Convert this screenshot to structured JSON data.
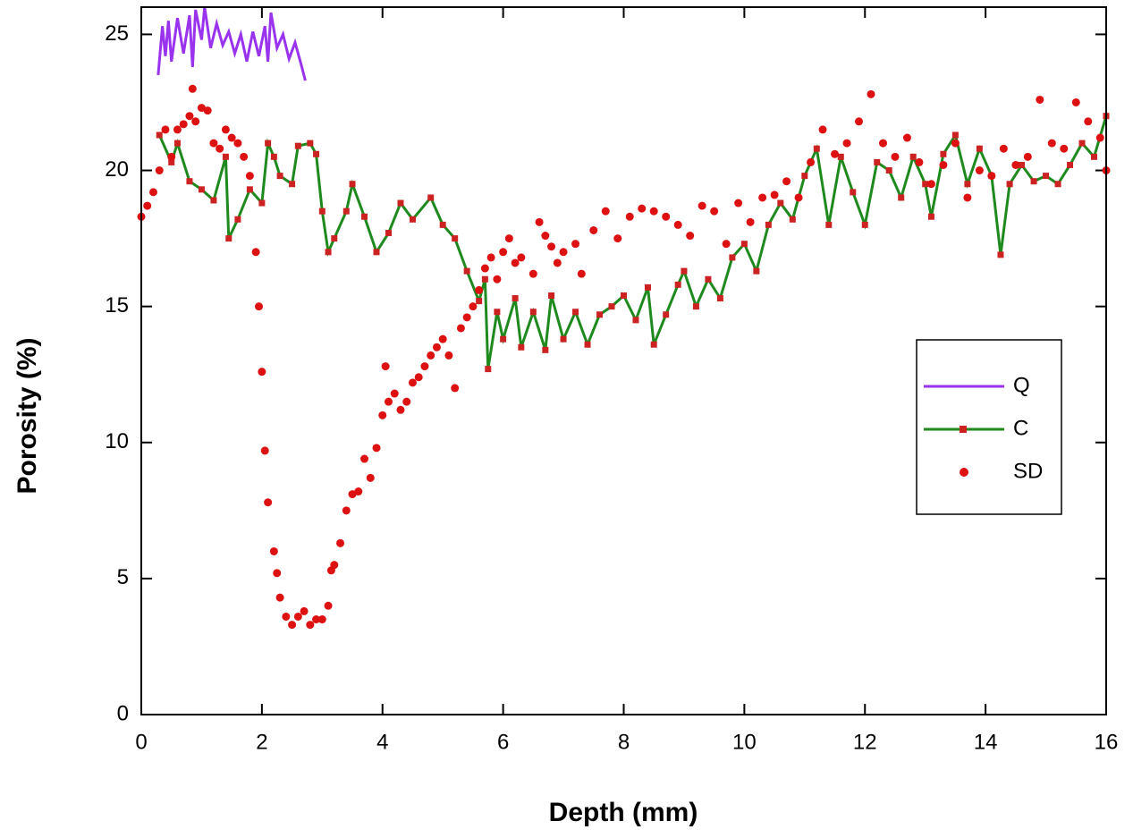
{
  "chart_data": {
    "type": "line",
    "xlabel": "Depth (mm)",
    "ylabel": "Porosity (%)",
    "xlim": [
      0,
      16
    ],
    "xticks": [
      0,
      2,
      4,
      6,
      8,
      10,
      12,
      14,
      16
    ],
    "ylim": [
      0,
      26
    ],
    "yticks": [
      0,
      5,
      10,
      15,
      20,
      25
    ],
    "legend": "right",
    "series": [
      {
        "name": "Q",
        "style": "line",
        "color": "#9933ee",
        "x": [
          0.28,
          0.35,
          0.4,
          0.45,
          0.5,
          0.6,
          0.7,
          0.8,
          0.85,
          0.9,
          1.0,
          1.05,
          1.15,
          1.25,
          1.35,
          1.45,
          1.55,
          1.65,
          1.75,
          1.85,
          1.95,
          2.05,
          2.1,
          2.15,
          2.25,
          2.35,
          2.45,
          2.55,
          2.65,
          2.72
        ],
        "values": [
          23.5,
          25.3,
          24.2,
          25.5,
          24.0,
          25.6,
          24.3,
          25.7,
          23.8,
          25.9,
          24.8,
          26.0,
          24.5,
          25.4,
          24.6,
          25.1,
          24.3,
          25.0,
          24.0,
          25.1,
          24.2,
          25.3,
          24.0,
          25.8,
          24.5,
          25.0,
          24.1,
          24.7,
          23.9,
          23.3
        ]
      },
      {
        "name": "C",
        "style": "line-marker",
        "color": "#1e8a1e",
        "marker_color": "#cc2222",
        "x": [
          0.3,
          0.5,
          0.6,
          0.8,
          1.0,
          1.2,
          1.4,
          1.45,
          1.6,
          1.8,
          2.0,
          2.1,
          2.2,
          2.3,
          2.5,
          2.6,
          2.8,
          2.9,
          3.0,
          3.1,
          3.2,
          3.4,
          3.5,
          3.7,
          3.9,
          4.1,
          4.3,
          4.5,
          4.8,
          5.0,
          5.2,
          5.4,
          5.6,
          5.7,
          5.75,
          5.9,
          6.0,
          6.2,
          6.3,
          6.5,
          6.7,
          6.8,
          7.0,
          7.2,
          7.4,
          7.6,
          7.8,
          8.0,
          8.2,
          8.4,
          8.5,
          8.7,
          8.9,
          9.0,
          9.2,
          9.4,
          9.6,
          9.8,
          10.0,
          10.2,
          10.4,
          10.6,
          10.8,
          11.0,
          11.2,
          11.4,
          11.6,
          11.8,
          12.0,
          12.2,
          12.4,
          12.6,
          12.8,
          13.0,
          13.1,
          13.3,
          13.5,
          13.7,
          13.9,
          14.1,
          14.25,
          14.4,
          14.6,
          14.8,
          15.0,
          15.2,
          15.4,
          15.6,
          15.8,
          16.0
        ],
        "values": [
          21.3,
          20.3,
          21.0,
          19.6,
          19.3,
          18.9,
          20.5,
          17.5,
          18.2,
          19.3,
          18.8,
          21.0,
          20.5,
          19.8,
          19.5,
          20.9,
          21.0,
          20.6,
          18.5,
          17.0,
          17.5,
          18.5,
          19.5,
          18.3,
          17.0,
          17.7,
          18.8,
          18.2,
          19.0,
          18.0,
          17.5,
          16.3,
          15.2,
          16.0,
          12.7,
          14.8,
          13.8,
          15.3,
          13.5,
          14.8,
          13.4,
          15.4,
          13.8,
          14.8,
          13.6,
          14.7,
          15.0,
          15.4,
          14.5,
          15.7,
          13.6,
          14.7,
          15.8,
          16.3,
          15.0,
          16.0,
          15.3,
          16.8,
          17.3,
          16.3,
          18.0,
          18.8,
          18.2,
          19.8,
          20.8,
          18.0,
          20.5,
          19.2,
          18.0,
          20.3,
          20.0,
          19.0,
          20.5,
          19.5,
          18.3,
          20.6,
          21.3,
          19.5,
          20.8,
          19.8,
          16.9,
          19.5,
          20.2,
          19.6,
          19.8,
          19.5,
          20.2,
          21.0,
          20.5,
          22.0
        ]
      },
      {
        "name": "SD",
        "style": "scatter",
        "color": "#dd1111",
        "x": [
          0.0,
          0.1,
          0.2,
          0.3,
          0.4,
          0.5,
          0.6,
          0.7,
          0.8,
          0.85,
          0.9,
          1.0,
          1.1,
          1.2,
          1.3,
          1.4,
          1.5,
          1.6,
          1.7,
          1.8,
          1.9,
          1.95,
          2.0,
          2.05,
          2.1,
          2.2,
          2.25,
          2.3,
          2.4,
          2.5,
          2.6,
          2.7,
          2.8,
          2.9,
          3.0,
          3.1,
          3.15,
          3.2,
          3.3,
          3.4,
          3.5,
          3.6,
          3.7,
          3.8,
          3.9,
          4.0,
          4.05,
          4.1,
          4.2,
          4.3,
          4.4,
          4.5,
          4.6,
          4.7,
          4.8,
          4.9,
          5.0,
          5.1,
          5.2,
          5.3,
          5.4,
          5.5,
          5.6,
          5.7,
          5.8,
          5.9,
          6.0,
          6.1,
          6.2,
          6.3,
          6.5,
          6.6,
          6.7,
          6.8,
          6.9,
          7.0,
          7.2,
          7.3,
          7.5,
          7.7,
          7.9,
          8.1,
          8.3,
          8.5,
          8.7,
          8.9,
          9.1,
          9.3,
          9.5,
          9.7,
          9.9,
          10.1,
          10.3,
          10.5,
          10.7,
          10.9,
          11.1,
          11.3,
          11.5,
          11.7,
          11.9,
          12.1,
          12.3,
          12.5,
          12.7,
          12.9,
          13.1,
          13.3,
          13.5,
          13.7,
          13.9,
          14.1,
          14.3,
          14.5,
          14.7,
          14.9,
          15.1,
          15.3,
          15.5,
          15.7,
          15.9,
          16.0
        ],
        "values": [
          18.3,
          18.7,
          19.2,
          20.0,
          21.5,
          20.5,
          21.5,
          21.7,
          22.0,
          23.0,
          21.8,
          22.3,
          22.2,
          21.0,
          20.8,
          21.5,
          21.2,
          21.0,
          20.5,
          19.8,
          17.0,
          15.0,
          12.6,
          9.7,
          7.8,
          6.0,
          5.2,
          4.3,
          3.6,
          3.3,
          3.6,
          3.8,
          3.3,
          3.5,
          3.5,
          4.0,
          5.3,
          5.5,
          6.3,
          7.5,
          8.1,
          8.2,
          9.4,
          8.7,
          9.8,
          11.0,
          12.8,
          11.5,
          11.8,
          11.2,
          11.5,
          12.2,
          12.4,
          12.8,
          13.2,
          13.5,
          13.8,
          13.2,
          12.0,
          14.2,
          14.6,
          15.0,
          15.6,
          16.4,
          16.8,
          16.0,
          17.0,
          17.5,
          16.6,
          16.8,
          16.2,
          18.1,
          17.6,
          17.2,
          16.6,
          17.0,
          17.3,
          16.2,
          17.8,
          18.5,
          17.5,
          18.3,
          18.6,
          18.5,
          18.3,
          18.0,
          17.6,
          18.7,
          18.5,
          17.3,
          18.8,
          18.1,
          19.0,
          19.1,
          19.6,
          19.0,
          20.3,
          21.5,
          20.6,
          21.0,
          21.8,
          22.8,
          21.0,
          20.5,
          21.2,
          20.3,
          19.5,
          20.2,
          21.0,
          19.0,
          20.0,
          19.8,
          20.8,
          20.2,
          20.5,
          22.6,
          21.0,
          20.8,
          22.5,
          21.8,
          21.2,
          20.0
        ]
      }
    ]
  }
}
